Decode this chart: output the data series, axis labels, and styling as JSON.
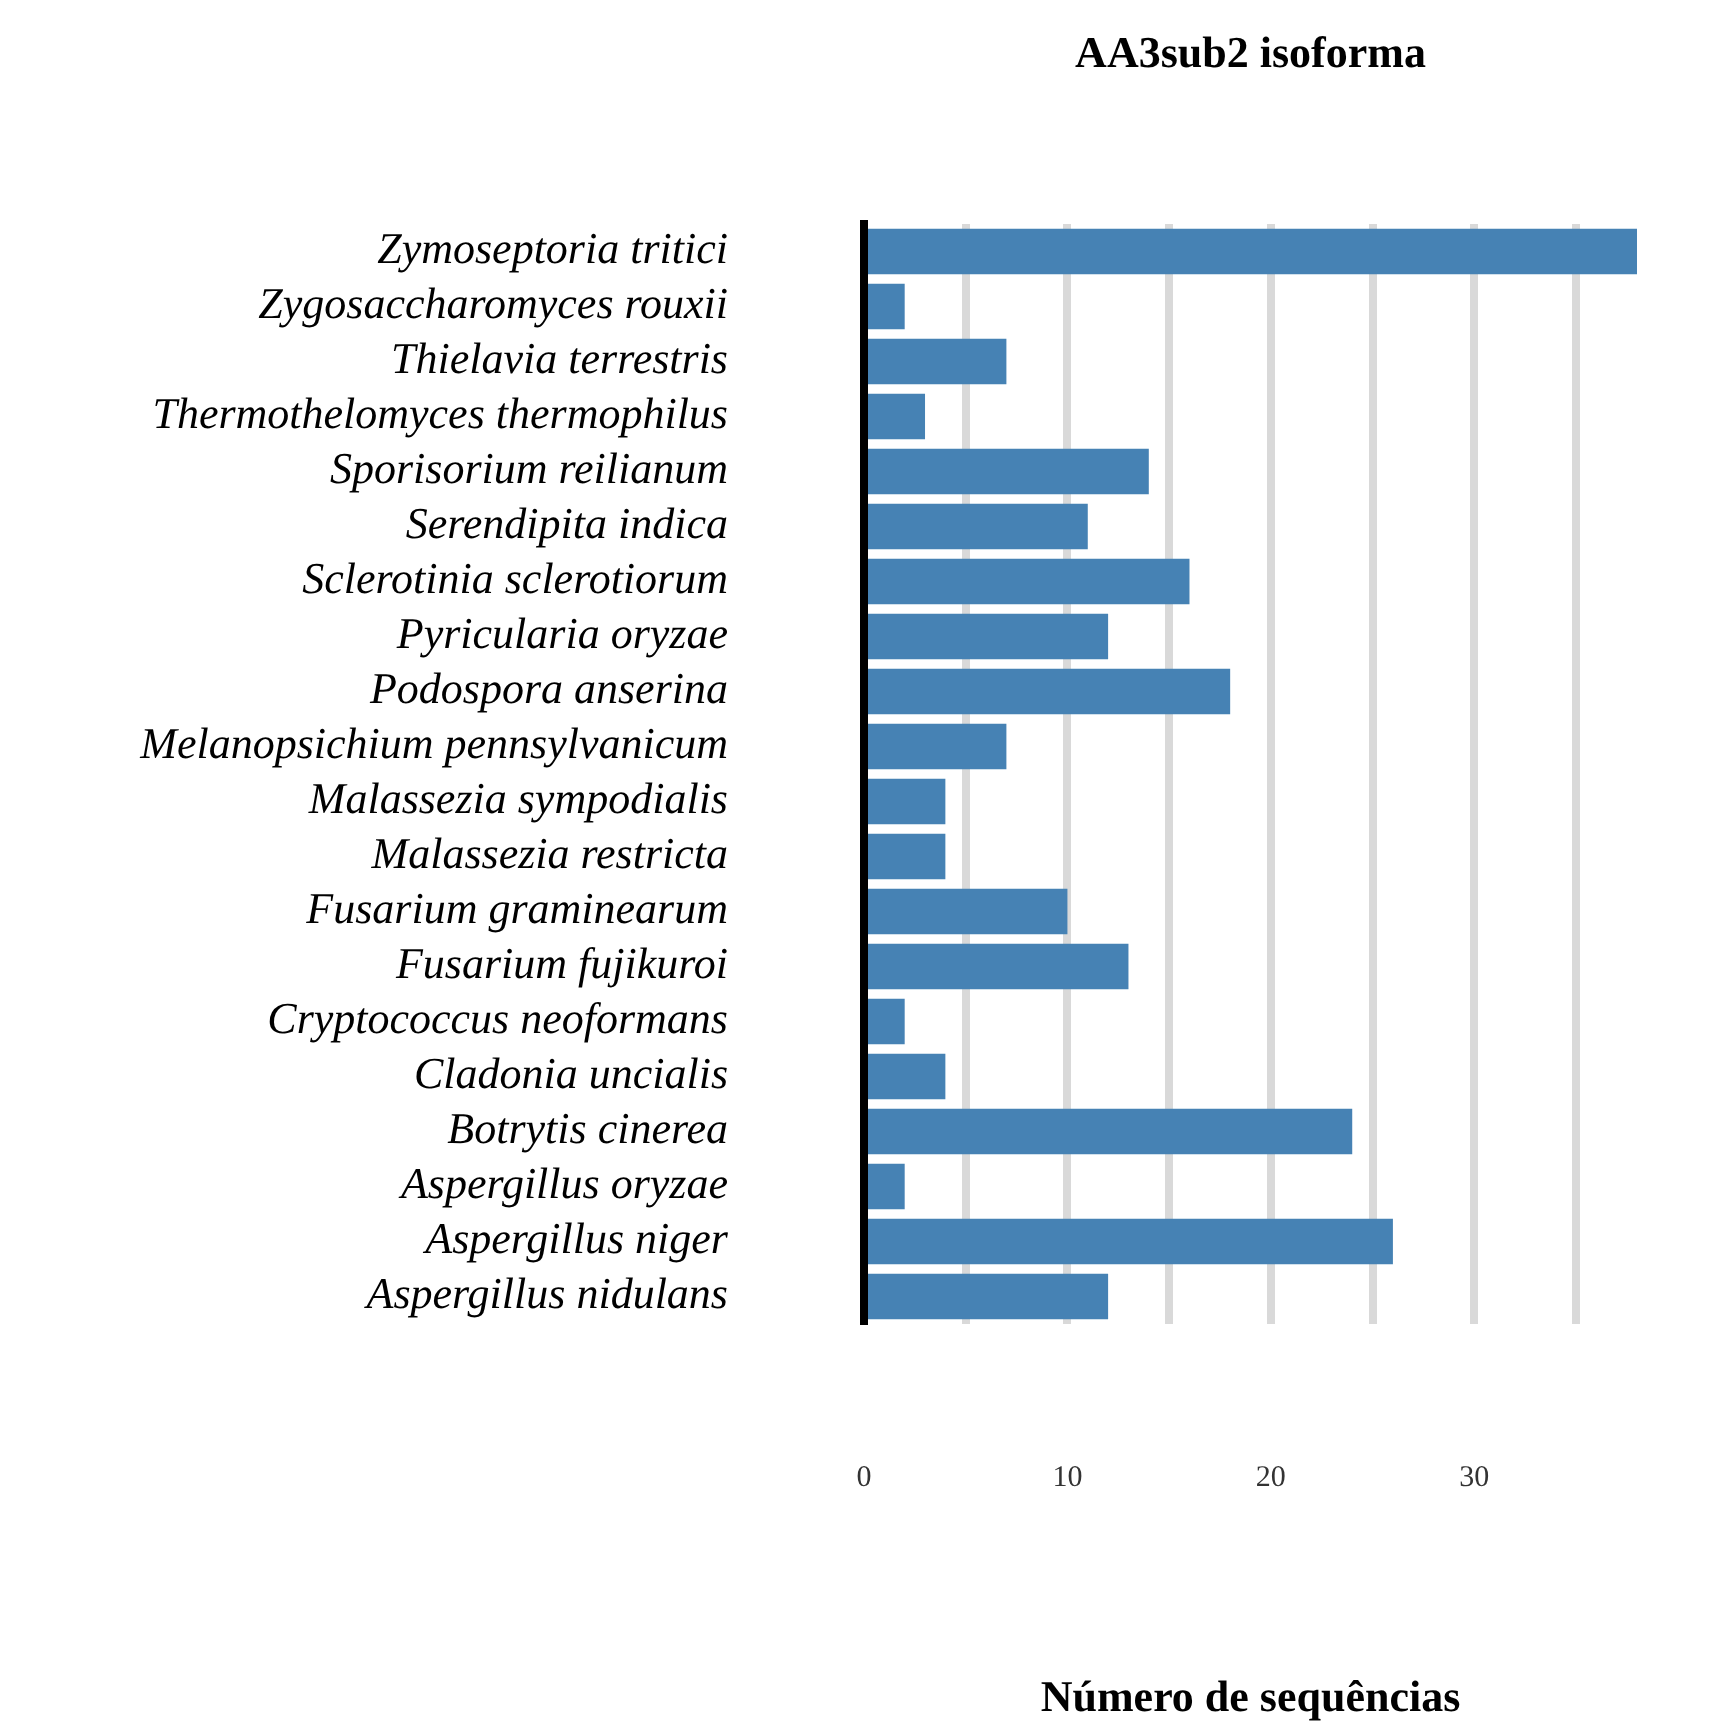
{
  "chart_data": {
    "type": "bar",
    "orientation": "horizontal",
    "title": "AA3sub2 isoforma",
    "xlabel": "Número de sequências",
    "categories": [
      "Zymoseptoria tritici",
      "Zygosaccharomyces rouxii",
      "Thielavia terrestris",
      "Thermothelomyces thermophilus",
      "Sporisorium reilianum",
      "Serendipita indica",
      "Sclerotinia sclerotiorum",
      "Pyricularia oryzae",
      "Podospora anserina",
      "Melanopsichium pennsylvanicum",
      "Malassezia sympodialis",
      "Malassezia restricta",
      "Fusarium graminearum",
      "Fusarium fujikuroi",
      "Cryptococcus neoformans",
      "Cladonia uncialis",
      "Botrytis cinerea",
      "Aspergillus oryzae",
      "Aspergillus niger",
      "Aspergillus nidulans"
    ],
    "values": [
      38,
      2,
      7,
      3,
      14,
      11,
      16,
      12,
      18,
      7,
      4,
      4,
      10,
      13,
      2,
      4,
      24,
      2,
      26,
      12
    ],
    "color": "#4682b4",
    "xlim": [
      0,
      38
    ],
    "xticks": [
      0,
      {
        "value": 5,
        "label": null
      },
      10,
      {
        "value": 15,
        "label": null
      },
      20,
      {
        "value": 25,
        "label": null
      },
      30,
      {
        "value": 35,
        "label": null
      }
    ],
    "grid": "x"
  }
}
